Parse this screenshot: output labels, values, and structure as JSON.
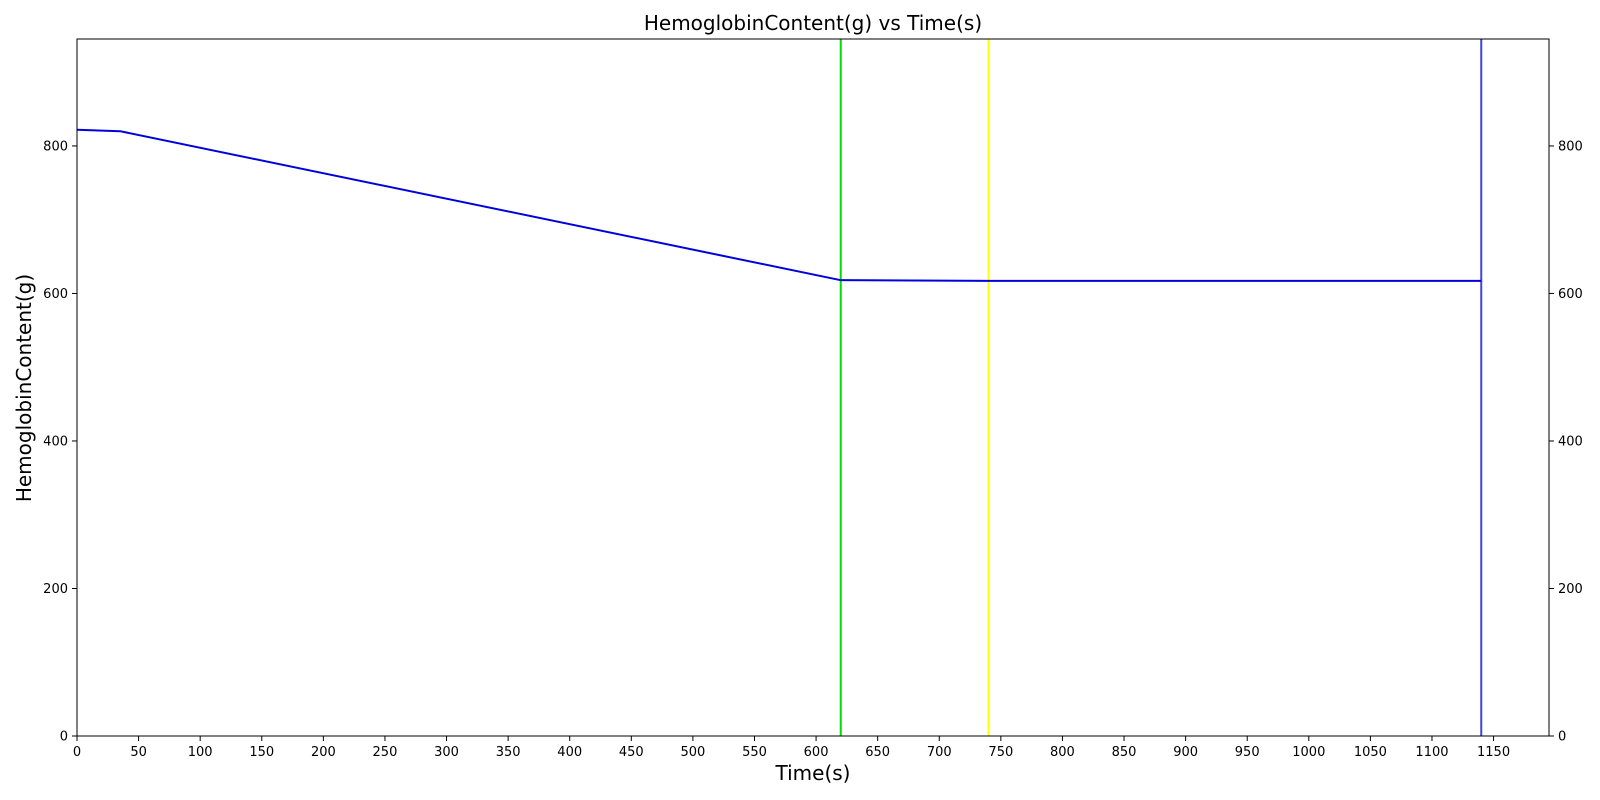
{
  "chart_data": {
    "type": "line",
    "title": "HemoglobinContent(g) vs Time(s)",
    "xlabel": "Time(s)",
    "ylabel": "HemoglobinContent(g)",
    "xlim": [
      0,
      1195
    ],
    "ylim": [
      0,
      945
    ],
    "x_ticks": [
      0,
      50,
      100,
      150,
      200,
      250,
      300,
      350,
      400,
      450,
      500,
      550,
      600,
      650,
      700,
      750,
      800,
      850,
      900,
      950,
      1000,
      1050,
      1100,
      1150
    ],
    "y_ticks": [
      0,
      200,
      400,
      600,
      800
    ],
    "y_ticks_right": [
      0,
      200,
      400,
      600,
      800
    ],
    "grid": false,
    "series": [
      {
        "color": "#0000dd",
        "x": [
          0,
          35,
          620,
          740,
          760,
          950,
          1140
        ],
        "y": [
          822,
          820,
          618,
          617,
          617,
          617,
          617
        ]
      }
    ],
    "vertical_lines": [
      {
        "x": 620,
        "color": "#00dd00"
      },
      {
        "x": 740,
        "color": "#ffff00"
      },
      {
        "x": 1140,
        "color": "#4444dd"
      }
    ]
  }
}
